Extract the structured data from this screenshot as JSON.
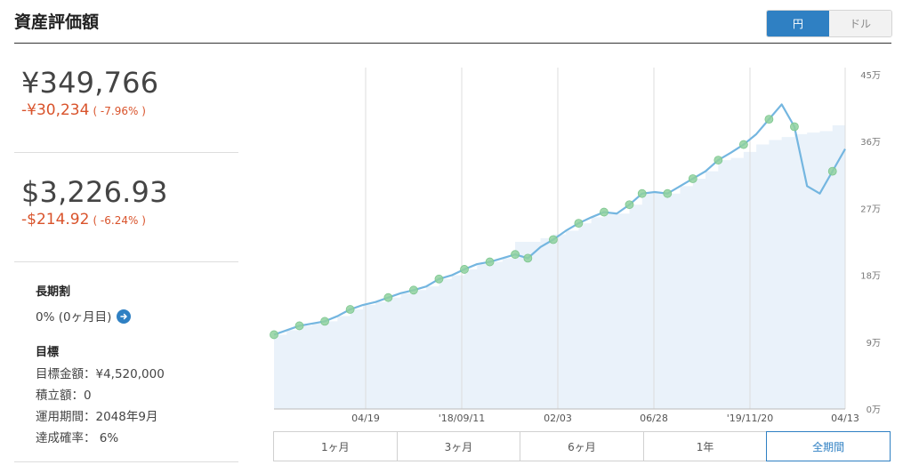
{
  "header": {
    "title": "資産評価額"
  },
  "currency_toggle": {
    "yen_label": "円",
    "dollar_label": "ドル",
    "selected": "円"
  },
  "summary": {
    "yen_value": "¥349,766",
    "yen_change": "-¥30,234",
    "yen_change_pct": "( -7.96% )",
    "usd_value": "$3,226.93",
    "usd_change": "-$214.92",
    "usd_change_pct": "( -6.24% )"
  },
  "long_term": {
    "label": "長期割",
    "value": "0% (0ヶ月目)"
  },
  "goal": {
    "label": "目標",
    "amount": "目標金額：¥4,520,000",
    "installment": "積立額：0",
    "period": "運用期間：2048年9月",
    "probability": "達成確率： 6%"
  },
  "range_tabs": [
    "1ヶ月",
    "3ヶ月",
    "6ヶ月",
    "1年",
    "全期間"
  ],
  "range_selected": "全期間",
  "colors": {
    "accent": "#2f80c3",
    "line": "#74b6e0",
    "area": "#eaf2fa",
    "marker": "#8fd19e",
    "negative": "#d9532b"
  },
  "chart_data": {
    "type": "line",
    "x_tick_labels": [
      "04/19",
      "'18/09/11",
      "02/03",
      "06/28",
      "'19/11/20",
      "04/13"
    ],
    "y_tick_labels": [
      "0万",
      "9万",
      "18万",
      "27万",
      "36万",
      "45万"
    ],
    "y_ticks": [
      0,
      90000,
      180000,
      270000,
      360000,
      450000
    ],
    "ylim": [
      0,
      450000
    ],
    "y_axis_position": "right",
    "grid": "vertical",
    "series": [
      {
        "values": [
          100000,
          106000,
          112000,
          115000,
          118000,
          125000,
          134000,
          140000,
          144000,
          150000,
          156000,
          160000,
          165000,
          175000,
          180000,
          188000,
          195000,
          198000,
          203000,
          208000,
          203000,
          218000,
          228000,
          240000,
          250000,
          258000,
          265000,
          263000,
          275000,
          290000,
          292000,
          290000,
          300000,
          310000,
          320000,
          335000,
          345000,
          356000,
          370000,
          390000,
          410000,
          380000,
          300000,
          290000,
          320000,
          350000
        ]
      },
      {
        "values": [
          100000,
          106000,
          112000,
          115000,
          118000,
          125000,
          134000,
          140000,
          144000,
          150000,
          156000,
          160000,
          165000,
          175000,
          180000,
          188000,
          195000,
          198000,
          203000,
          225000,
          225000,
          230000,
          235000,
          240000,
          250000,
          258000,
          265000,
          263000,
          275000,
          290000,
          292000,
          290000,
          300000,
          310000,
          320000,
          335000,
          338000,
          346000,
          356000,
          362000,
          366000,
          370000,
          372000,
          374000,
          382000,
          382000
        ]
      }
    ],
    "marker_indices": [
      0,
      2,
      4,
      6,
      9,
      11,
      13,
      15,
      17,
      19,
      20,
      22,
      24,
      26,
      28,
      29,
      31,
      33,
      35,
      37,
      39,
      41,
      44
    ]
  }
}
